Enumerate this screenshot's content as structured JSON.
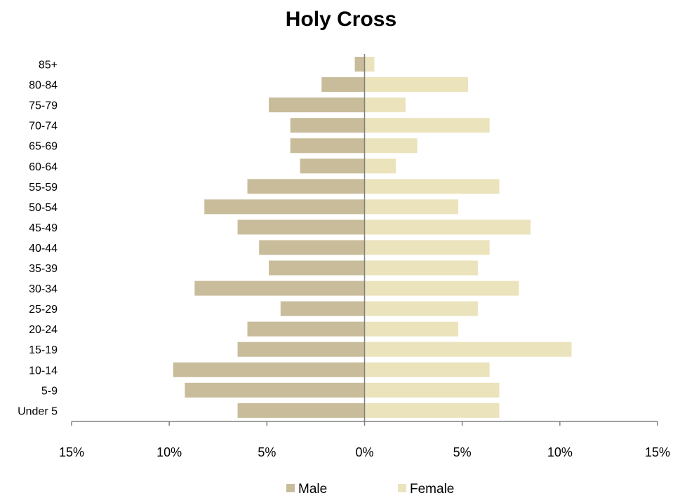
{
  "chart_data": {
    "type": "bar",
    "orientation": "horizontal",
    "title": "Holy Cross",
    "categories": [
      "Under 5",
      "5-9",
      "10-14",
      "15-19",
      "20-24",
      "25-29",
      "30-34",
      "35-39",
      "40-44",
      "45-49",
      "50-54",
      "55-59",
      "60-64",
      "65-69",
      "70-74",
      "75-79",
      "80-84",
      "85+"
    ],
    "series": [
      {
        "name": "Male",
        "color": "#c8bc9a",
        "values": [
          -6.5,
          -9.2,
          -9.8,
          -6.5,
          -6.0,
          -4.3,
          -8.7,
          -4.9,
          -5.4,
          -6.5,
          -8.2,
          -6.0,
          -3.3,
          -3.8,
          -3.8,
          -4.9,
          -2.2,
          -0.5
        ]
      },
      {
        "name": "Female",
        "color": "#ebe3bc",
        "values": [
          6.9,
          6.9,
          6.4,
          10.6,
          4.8,
          5.8,
          7.9,
          5.8,
          6.4,
          8.5,
          4.8,
          6.9,
          1.6,
          2.7,
          6.4,
          2.1,
          5.3,
          0.5
        ]
      }
    ],
    "xlim": [
      -15,
      15
    ],
    "xticks": [
      -15,
      -10,
      -5,
      0,
      5,
      10,
      15
    ],
    "xtick_labels": [
      "15%",
      "10%",
      "5%",
      "0%",
      "5%",
      "10%",
      "15%"
    ],
    "xlabel": "",
    "ylabel": "",
    "grid": false,
    "legend_position": "bottom"
  }
}
